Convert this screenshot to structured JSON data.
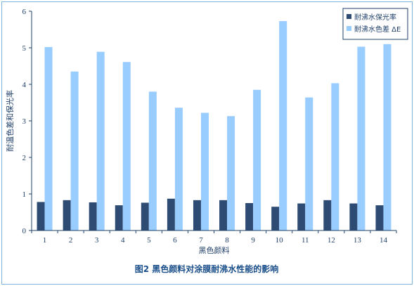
{
  "chart_data": {
    "type": "bar",
    "categories": [
      "1",
      "2",
      "3",
      "4",
      "5",
      "6",
      "7",
      "8",
      "9",
      "10",
      "11",
      "12",
      "13",
      "14"
    ],
    "series": [
      {
        "name": "耐沸水保光率",
        "color": "#2e4b73",
        "values": [
          0.78,
          0.83,
          0.77,
          0.69,
          0.76,
          0.87,
          0.83,
          0.83,
          0.75,
          0.65,
          0.74,
          0.83,
          0.74,
          0.69
        ]
      },
      {
        "name": "耐沸水色差 ΔE",
        "color": "#99ccff",
        "values": [
          5.02,
          4.35,
          4.89,
          4.61,
          3.8,
          3.36,
          3.22,
          3.13,
          3.85,
          5.73,
          3.64,
          4.03,
          5.03,
          5.1
        ]
      }
    ],
    "ylim": [
      0,
      6
    ],
    "yticks": [
      "0",
      "1",
      "2",
      "3",
      "4",
      "5",
      "6"
    ],
    "xlabel": "黑色颜料",
    "ylabel": "耐温色差和保光率",
    "legend_position": "top-right",
    "grid": false,
    "caption": "图2  黑色颜料对涂膜耐沸水性能的影响"
  }
}
